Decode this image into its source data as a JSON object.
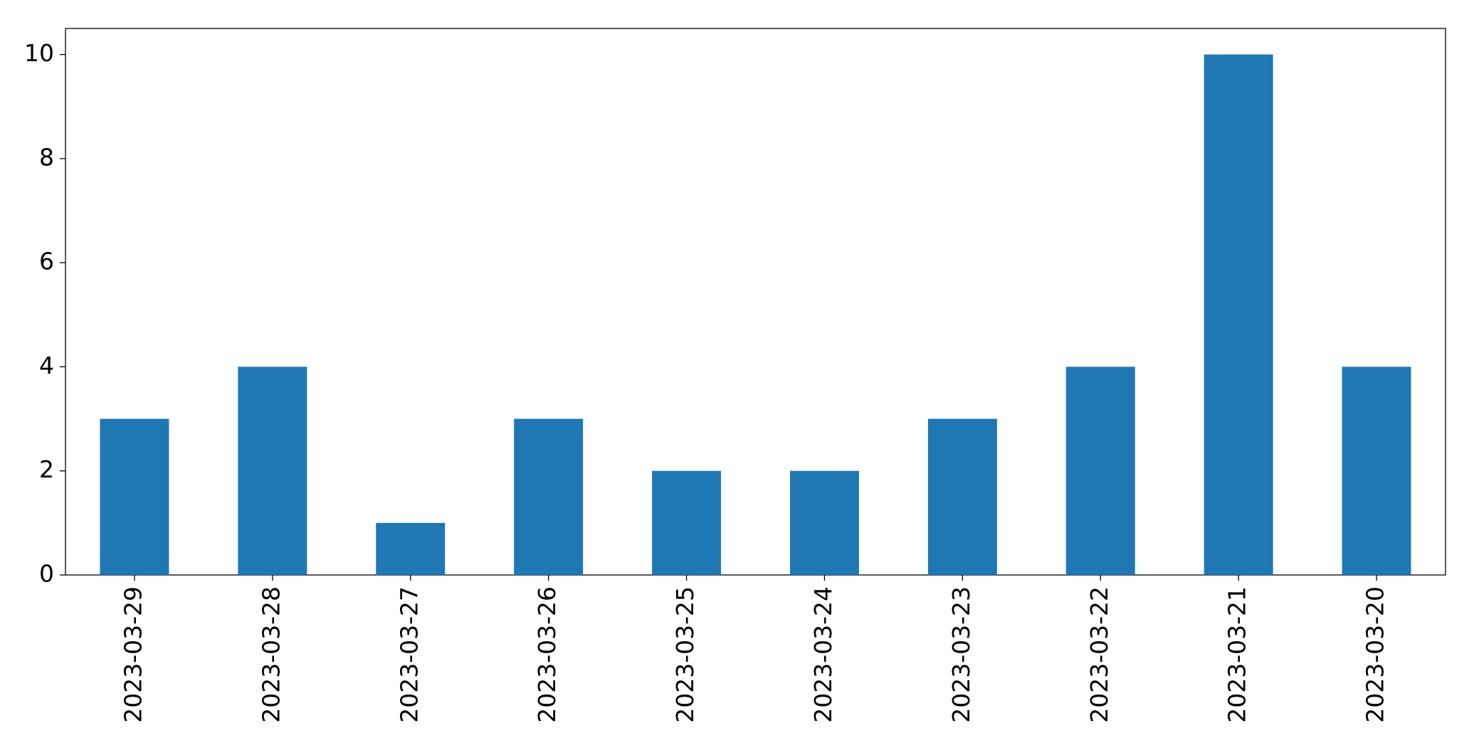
{
  "chart_data": {
    "type": "bar",
    "categories": [
      "2023-03-29",
      "2023-03-28",
      "2023-03-27",
      "2023-03-26",
      "2023-03-25",
      "2023-03-24",
      "2023-03-23",
      "2023-03-22",
      "2023-03-21",
      "2023-03-20"
    ],
    "values": [
      3,
      4,
      1,
      3,
      2,
      2,
      3,
      4,
      10,
      4
    ],
    "color": "#1f77b4",
    "ylim": [
      0,
      10.5
    ],
    "yticks": [
      0,
      2,
      4,
      6,
      8,
      10
    ],
    "grid": false
  }
}
